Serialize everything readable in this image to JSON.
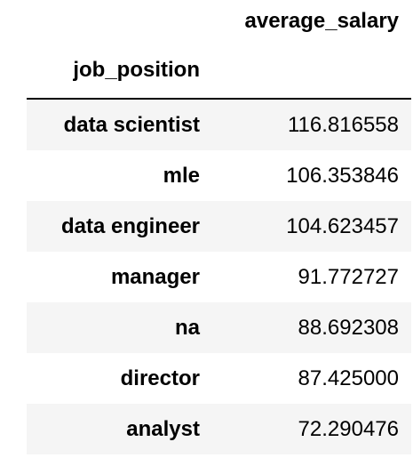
{
  "table": {
    "column_header": "average_salary",
    "index_name": "job_position",
    "rows": [
      {
        "index": "data scientist",
        "value": "116.816558"
      },
      {
        "index": "mle",
        "value": "106.353846"
      },
      {
        "index": "data engineer",
        "value": "104.623457"
      },
      {
        "index": "manager",
        "value": "91.772727"
      },
      {
        "index": "na",
        "value": "88.692308"
      },
      {
        "index": "director",
        "value": "87.425000"
      },
      {
        "index": "analyst",
        "value": "72.290476"
      }
    ]
  },
  "colors": {
    "stripe": "#f5f5f5",
    "background": "#ffffff",
    "rule": "#000000"
  }
}
